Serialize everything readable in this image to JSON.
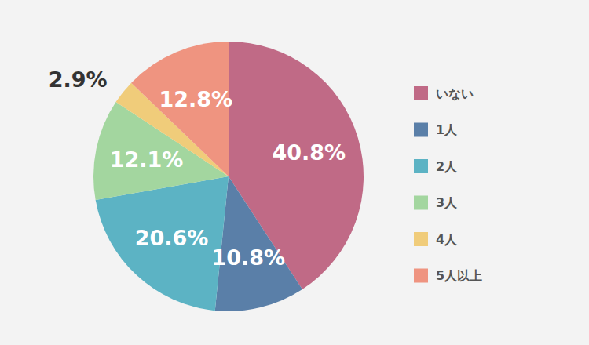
{
  "chart_data": {
    "type": "pie",
    "categories": [
      "いない",
      "1人",
      "2人",
      "3人",
      "4人",
      "5人以上"
    ],
    "values": [
      40.8,
      10.8,
      20.6,
      12.1,
      2.9,
      12.8
    ],
    "value_labels": [
      "40.8%",
      "10.8%",
      "20.6%",
      "12.1%",
      "2.9%",
      "12.8%"
    ],
    "colors": [
      "#c06a86",
      "#5a7fa8",
      "#5cb3c4",
      "#a3d69f",
      "#f0cc7a",
      "#ef9480"
    ],
    "data_labels": true,
    "legend": "right"
  }
}
